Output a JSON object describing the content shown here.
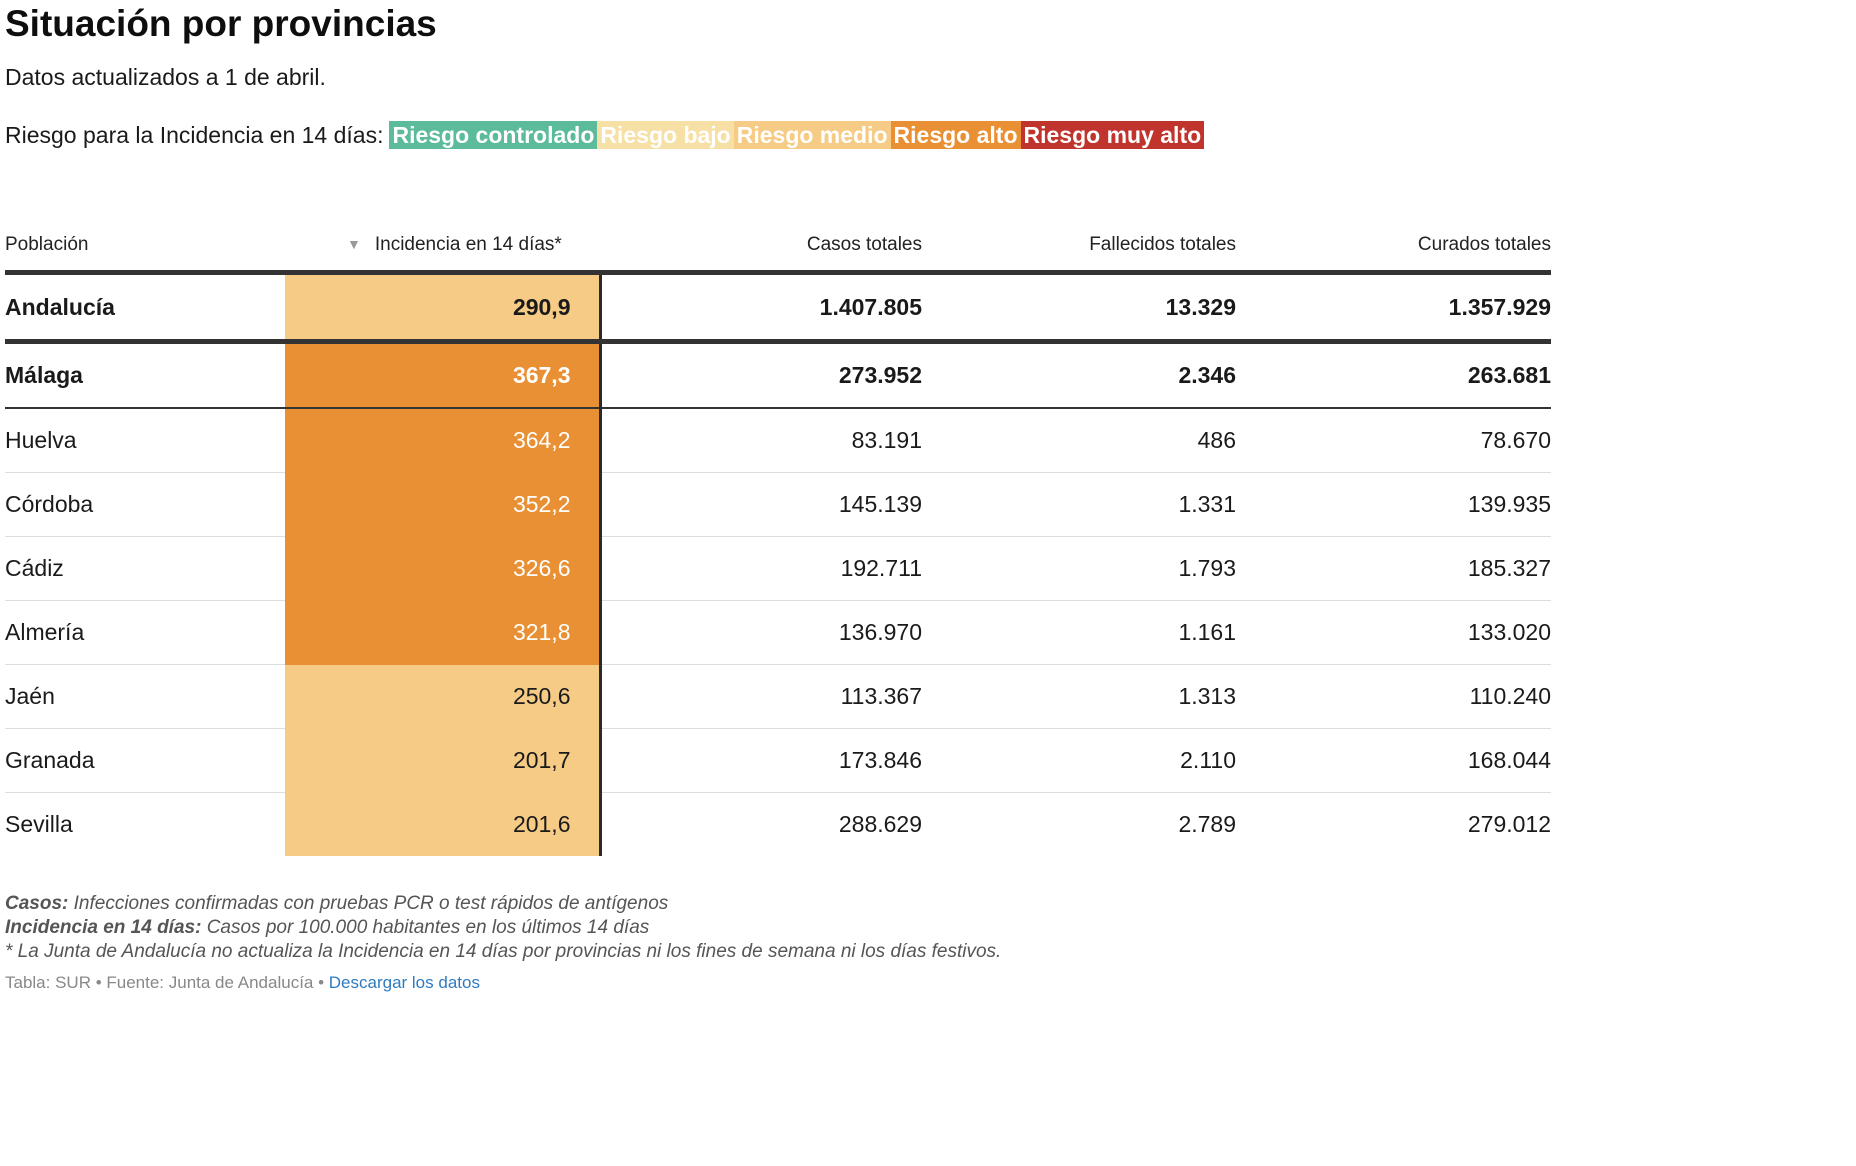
{
  "header": {
    "title": "Situación por provincias",
    "subtitle": "Datos actualizados a 1 de abril."
  },
  "legend": {
    "prefix": "Riesgo para la Incidencia en 14 días:",
    "items": [
      {
        "label": "Riesgo controlado",
        "color": "#5bbb9b"
      },
      {
        "label": "Riesgo bajo",
        "color": "#f7e0a6"
      },
      {
        "label": "Riesgo medio",
        "color": "#f5cb86"
      },
      {
        "label": "Riesgo alto",
        "color": "#ea9034"
      },
      {
        "label": "Riesgo muy alto",
        "color": "#c0342d"
      }
    ]
  },
  "table": {
    "columns": {
      "poblacion": "Población",
      "sort_icon": "▼",
      "incidencia": "Incidencia en 14 días*",
      "casos": "Casos totales",
      "fallecidos": "Fallecidos totales",
      "curados": "Curados totales"
    },
    "rows": [
      {
        "name": "Andalucía",
        "incidencia": "290,9",
        "casos": "1.407.805",
        "fallecidos": "13.329",
        "curados": "1.357.929",
        "color": "#f5cb86",
        "text_color": "#1a1a1a"
      },
      {
        "name": "Málaga",
        "incidencia": "367,3",
        "casos": "273.952",
        "fallecidos": "2.346",
        "curados": "263.681",
        "color": "#ea9034",
        "text_color": "#ffffff"
      },
      {
        "name": "Huelva",
        "incidencia": "364,2",
        "casos": "83.191",
        "fallecidos": "486",
        "curados": "78.670",
        "color": "#ea9034",
        "text_color": "#ffffff"
      },
      {
        "name": "Córdoba",
        "incidencia": "352,2",
        "casos": "145.139",
        "fallecidos": "1.331",
        "curados": "139.935",
        "color": "#ea9034",
        "text_color": "#ffffff"
      },
      {
        "name": "Cádiz",
        "incidencia": "326,6",
        "casos": "192.711",
        "fallecidos": "1.793",
        "curados": "185.327",
        "color": "#ea9034",
        "text_color": "#ffffff"
      },
      {
        "name": "Almería",
        "incidencia": "321,8",
        "casos": "136.970",
        "fallecidos": "1.161",
        "curados": "133.020",
        "color": "#ea9034",
        "text_color": "#ffffff"
      },
      {
        "name": "Jaén",
        "incidencia": "250,6",
        "casos": "113.367",
        "fallecidos": "1.313",
        "curados": "110.240",
        "color": "#f5cb86",
        "text_color": "#1a1a1a"
      },
      {
        "name": "Granada",
        "incidencia": "201,7",
        "casos": "173.846",
        "fallecidos": "2.110",
        "curados": "168.044",
        "color": "#f5cb86",
        "text_color": "#1a1a1a"
      },
      {
        "name": "Sevilla",
        "incidencia": "201,6",
        "casos": "288.629",
        "fallecidos": "2.789",
        "curados": "279.012",
        "color": "#f5cb86",
        "text_color": "#1a1a1a"
      }
    ]
  },
  "notes": {
    "casos_label": "Casos:",
    "casos_text": " Infecciones confirmadas con pruebas PCR o test rápidos de antígenos",
    "incidencia_label": "Incidencia en 14 días:",
    "incidencia_text": " Casos por 100.000 habitantes en los últimos 14 días",
    "footnote": "* La Junta de Andalucía no actualiza la Incidencia en 14 días por provincias ni los fines de semana ni los días festivos."
  },
  "source": {
    "text": "Tabla: SUR • Fuente: Junta de Andalucía • ",
    "link_label": "Descargar los datos"
  }
}
